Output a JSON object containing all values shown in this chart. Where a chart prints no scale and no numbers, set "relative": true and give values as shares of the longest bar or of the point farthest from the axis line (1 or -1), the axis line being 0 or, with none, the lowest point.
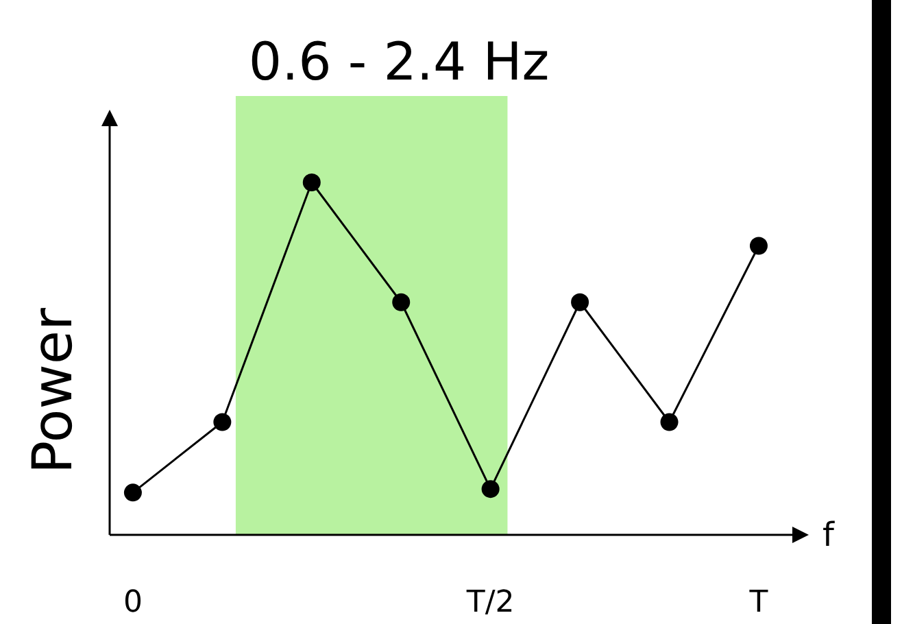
{
  "chart_data": {
    "type": "line",
    "relative": true,
    "xlabel": "f",
    "ylabel": "Power",
    "categories": [
      "0",
      null,
      null,
      null,
      "T/2",
      null,
      null,
      "T"
    ],
    "series": [
      {
        "color": "#000000",
        "values": [
          0.12,
          0.32,
          1,
          0.66,
          0.13,
          0.66,
          0.32,
          0.82
        ]
      }
    ],
    "annotations": [
      "0.6 - 2.4 Hz"
    ],
    "marker": "circle",
    "line_style": "solid",
    "grid": false
  }
}
